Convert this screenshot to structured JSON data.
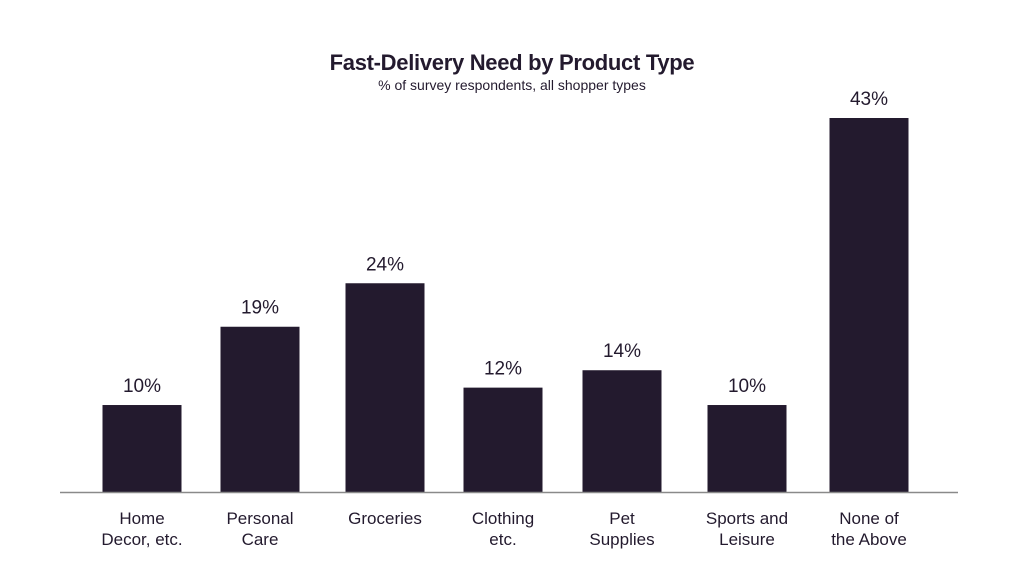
{
  "chart_data": {
    "type": "bar",
    "title": "Fast-Delivery Need by Product Type",
    "subtitle": "% of survey respondents, all shopper types",
    "categories": [
      [
        "Home",
        "Decor, etc."
      ],
      [
        "Personal",
        "Care"
      ],
      [
        "Groceries"
      ],
      [
        "Clothing",
        "etc."
      ],
      [
        "Pet",
        "Supplies"
      ],
      [
        "Sports and",
        "Leisure"
      ],
      [
        "None of",
        "the Above"
      ]
    ],
    "values": [
      10,
      19,
      24,
      12,
      14,
      10,
      43
    ],
    "value_labels": [
      "10%",
      "19%",
      "24%",
      "12%",
      "14%",
      "10%",
      "43%"
    ],
    "ylim": [
      0,
      43
    ],
    "grid": false,
    "bar_color": "#231a2e",
    "axis_color": "#8a8a8a"
  }
}
